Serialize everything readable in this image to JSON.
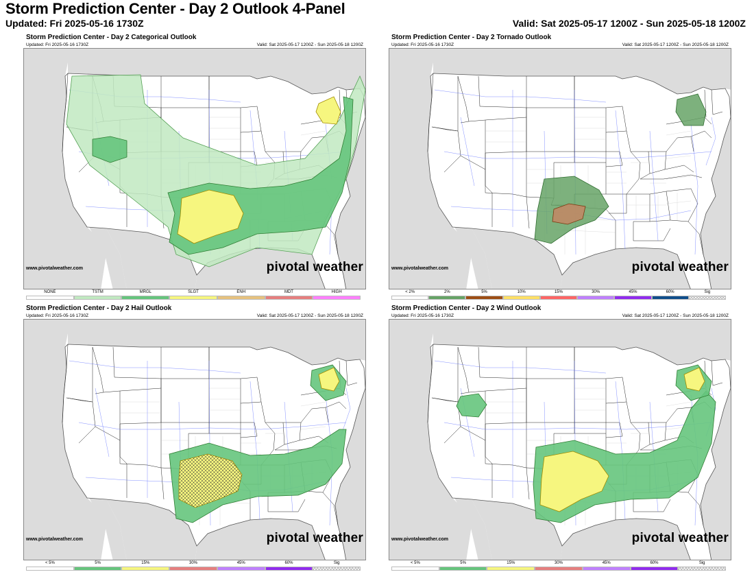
{
  "header": {
    "title": "Storm Prediction Center - Day 2 Outlook 4-Panel",
    "updated": "Updated: Fri 2025-05-16 1730Z",
    "valid": "Valid: Sat 2025-05-17 1200Z - Sun 2025-05-18 1200Z"
  },
  "panels": [
    {
      "title": "Storm Prediction Center - Day 2 Categorical Outlook",
      "updated": "Updated: Fri 2025-05-16 1730Z",
      "valid": "Valid: Sat 2025-05-17 1200Z - Sun 2025-05-18 1200Z",
      "credit": "www.pivotalweather.com",
      "brand": "pivotal weather",
      "legend": [
        {
          "label": "NONE",
          "color": "#ffffff"
        },
        {
          "label": "TSTM",
          "color": "#c1e9c1"
        },
        {
          "label": "MRGL",
          "color": "#66c57d"
        },
        {
          "label": "SLGT",
          "color": "#f6f67f"
        },
        {
          "label": "ENH",
          "color": "#e6c27f"
        },
        {
          "label": "MDT",
          "color": "#e67f7f"
        },
        {
          "label": "HIGH",
          "color": "#ff80ff"
        }
      ]
    },
    {
      "title": "Storm Prediction Center - Day 2 Tornado Outlook",
      "updated": "Updated: Fri 2025-05-16 1730Z",
      "valid": "Valid: Sat 2025-05-17 1200Z - Sun 2025-05-18 1200Z",
      "credit": "www.pivotalweather.com",
      "brand": "pivotal weather",
      "legend": [
        {
          "label": "< 2%",
          "color": "#ffffff"
        },
        {
          "label": "2%",
          "color": "#66a366"
        },
        {
          "label": "5%",
          "color": "#9d4e15"
        },
        {
          "label": "10%",
          "color": "#ffe066"
        },
        {
          "label": "15%",
          "color": "#ff6666"
        },
        {
          "label": "30%",
          "color": "#c080ff"
        },
        {
          "label": "45%",
          "color": "#912cee"
        },
        {
          "label": "60%",
          "color": "#104e8b"
        },
        {
          "label": "Sig",
          "color": "hatch"
        }
      ]
    },
    {
      "title": "Storm Prediction Center - Day 2 Hail Outlook",
      "updated": "Updated: Fri 2025-05-16 1730Z",
      "valid": "Valid: Sat 2025-05-17 1200Z - Sun 2025-05-18 1200Z",
      "credit": "www.pivotalweather.com",
      "brand": "pivotal weather",
      "legend": [
        {
          "label": "< 5%",
          "color": "#ffffff"
        },
        {
          "label": "5%",
          "color": "#66c57d"
        },
        {
          "label": "15%",
          "color": "#f6f67f"
        },
        {
          "label": "30%",
          "color": "#e67f7f"
        },
        {
          "label": "45%",
          "color": "#c080ff"
        },
        {
          "label": "60%",
          "color": "#912cee"
        },
        {
          "label": "Sig",
          "color": "hatch"
        }
      ]
    },
    {
      "title": "Storm Prediction Center - Day 2 Wind Outlook",
      "updated": "Updated: Fri 2025-05-16 1730Z",
      "valid": "Valid: Sat 2025-05-17 1200Z - Sun 2025-05-18 1200Z",
      "credit": "www.pivotalweather.com",
      "brand": "pivotal weather",
      "legend": [
        {
          "label": "< 5%",
          "color": "#ffffff"
        },
        {
          "label": "5%",
          "color": "#66c57d"
        },
        {
          "label": "15%",
          "color": "#f6f67f"
        },
        {
          "label": "30%",
          "color": "#e67f7f"
        },
        {
          "label": "45%",
          "color": "#c080ff"
        },
        {
          "label": "60%",
          "color": "#912cee"
        },
        {
          "label": "Sig",
          "color": "hatch"
        }
      ]
    }
  ]
}
